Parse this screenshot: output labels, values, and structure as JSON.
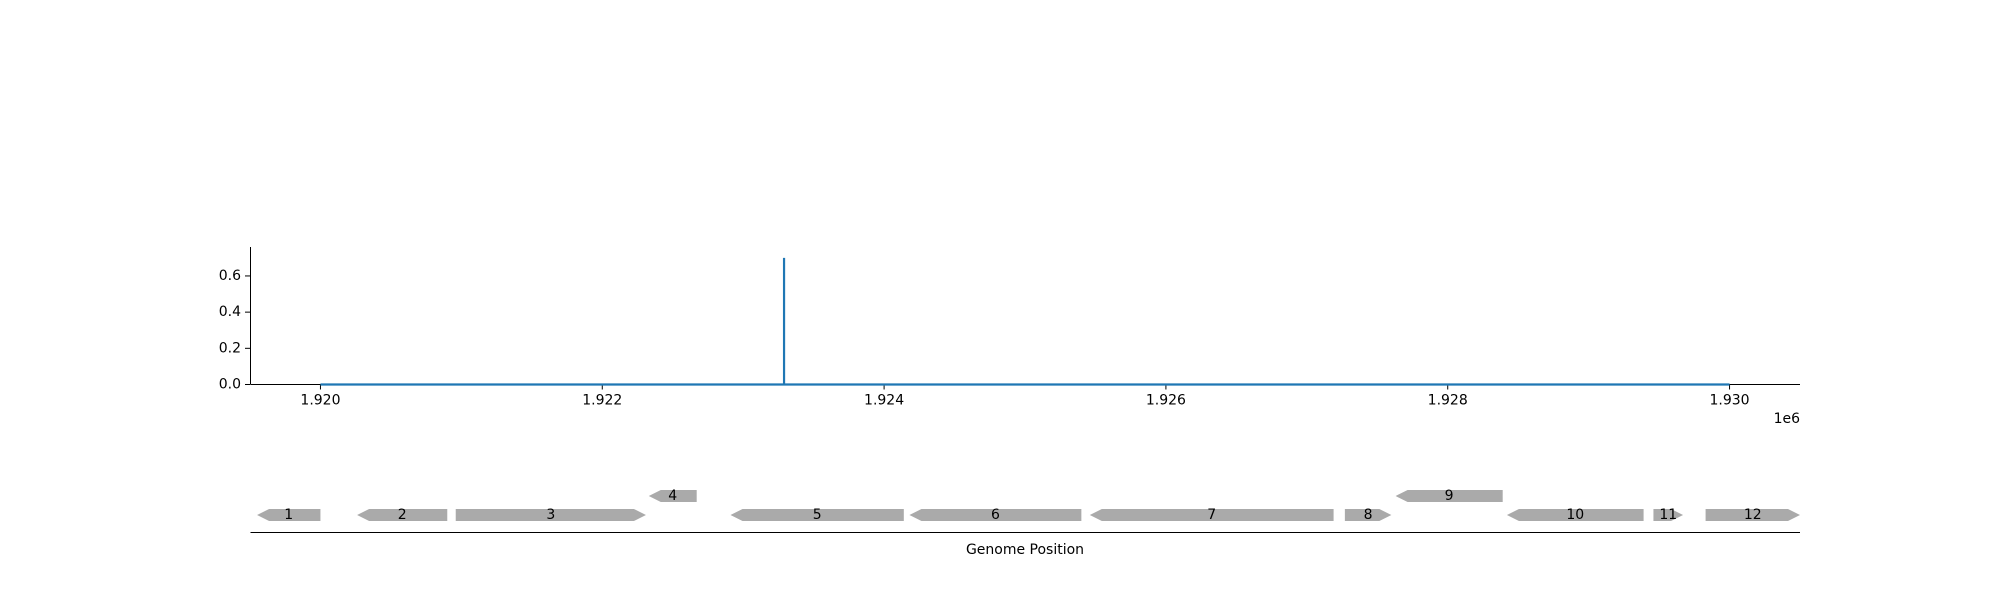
{
  "chart_data": [
    {
      "type": "line",
      "title": "",
      "xlabel": "",
      "ylabel": "",
      "x_offset_label": "1e6",
      "xlim": [
        1.9195,
        1.9305
      ],
      "ylim": [
        0,
        0.76
      ],
      "x_ticks": [
        1.92,
        1.922,
        1.924,
        1.926,
        1.928,
        1.93
      ],
      "x_tick_labels": [
        "1.920",
        "1.922",
        "1.924",
        "1.926",
        "1.928",
        "1.930"
      ],
      "y_ticks": [
        0.0,
        0.2,
        0.4,
        0.6
      ],
      "y_tick_labels": [
        "0.0",
        "0.2",
        "0.4",
        "0.6"
      ],
      "grid": false,
      "series": [
        {
          "color": "#1f77b4",
          "x": [
            1.92,
            1.92329,
            1.92329,
            1.92329,
            1.93
          ],
          "y": [
            0.0,
            0.0,
            0.7,
            0.0,
            0.0
          ]
        }
      ]
    },
    {
      "type": "gene-track",
      "xlabel": "Genome Position",
      "gene_color": "#aaaaaa",
      "genes": [
        {
          "label": "1",
          "start": 1.91955,
          "end": 1.92,
          "strand": "-",
          "row": 0
        },
        {
          "label": "2",
          "start": 1.92026,
          "end": 1.9209,
          "strand": "-",
          "row": 0
        },
        {
          "label": "3",
          "start": 1.92096,
          "end": 1.92231,
          "strand": "+",
          "row": 0
        },
        {
          "label": "4",
          "start": 1.92233,
          "end": 1.92267,
          "strand": "-",
          "row": 1
        },
        {
          "label": "5",
          "start": 1.92291,
          "end": 1.92414,
          "strand": "-",
          "row": 0
        },
        {
          "label": "6",
          "start": 1.92418,
          "end": 1.9254,
          "strand": "-",
          "row": 0
        },
        {
          "label": "7",
          "start": 1.92546,
          "end": 1.92719,
          "strand": "-",
          "row": 0
        },
        {
          "label": "8",
          "start": 1.92727,
          "end": 1.9276,
          "strand": "+",
          "row": 0
        },
        {
          "label": "9",
          "start": 1.92763,
          "end": 1.92839,
          "strand": "-",
          "row": 1
        },
        {
          "label": "10",
          "start": 1.92842,
          "end": 1.92939,
          "strand": "-",
          "row": 0
        },
        {
          "label": "11",
          "start": 1.92946,
          "end": 1.92967,
          "strand": "+",
          "row": 0
        },
        {
          "label": "12",
          "start": 1.92983,
          "end": 1.9305,
          "strand": "+",
          "row": 0
        }
      ]
    }
  ]
}
